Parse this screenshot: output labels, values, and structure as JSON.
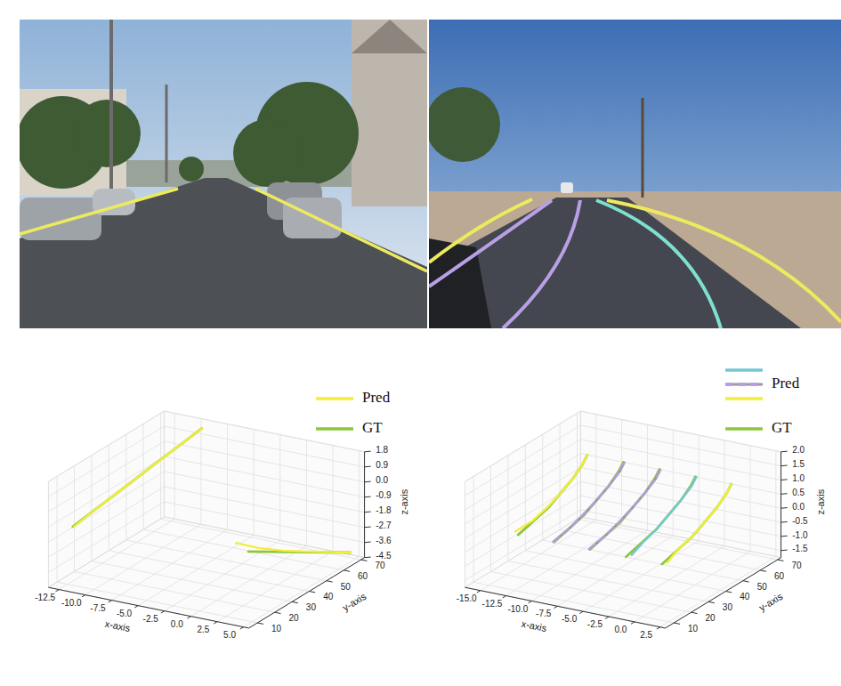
{
  "chart_data": [
    {
      "type": "line3d",
      "xlabel": "x-axis",
      "ylabel": "y-axis",
      "zlabel": "z-axis",
      "xlim": [
        -13.5,
        5.5
      ],
      "ylim": [
        5,
        72
      ],
      "zlim": [
        -4.5,
        1.8
      ],
      "xticks": [
        -12.5,
        {
          "value": -10,
          "label": "-10.0"
        },
        -7.5,
        {
          "value": -5,
          "label": "-5.0"
        },
        -2.5,
        {
          "value": 0,
          "label": "0.0"
        },
        2.5,
        {
          "value": 5,
          "label": "5.0"
        }
      ],
      "yticks": [
        10,
        20,
        30,
        40,
        50,
        60,
        70
      ],
      "zticks": [
        1.8,
        0.9,
        {
          "value": 0,
          "label": "0.0"
        },
        -0.9,
        -1.8,
        -2.7,
        -3.6,
        -4.5
      ],
      "grid": true,
      "legend": "upper right",
      "series": [
        {
          "name": "Pred",
          "color": "#f2ee3a",
          "x": [
            -11.9,
            -11.6,
            -11.2,
            -10.8,
            -10.4,
            -10.0,
            -9.6
          ],
          "y": [
            10,
            20,
            30,
            40,
            50,
            60,
            70
          ],
          "z": [
            -1.0,
            -0.6,
            -0.2,
            0.2,
            0.6,
            1.0,
            1.4
          ]
        },
        {
          "name": "Pred",
          "color": "#f2ee3a",
          "x": [
            1.5,
            2.3,
            3.0,
            3.6,
            4.1,
            4.5
          ],
          "y": [
            22,
            30,
            40,
            50,
            60,
            70
          ],
          "z": [
            -1.0,
            -1.7,
            -2.4,
            -3.0,
            -3.6,
            -4.2
          ]
        },
        {
          "name": "GT",
          "color": "#8dc63f",
          "x": [
            -12.0,
            -11.6,
            -11.2,
            -10.8,
            -10.4,
            -10.0,
            -9.6
          ],
          "y": [
            10,
            20,
            30,
            40,
            50,
            60,
            70
          ],
          "z": [
            -1.0,
            -0.6,
            -0.2,
            0.2,
            0.6,
            1.0,
            1.4
          ]
        },
        {
          "name": "GT",
          "color": "#8dc63f",
          "x": [
            3.0,
            3.3,
            3.6,
            3.9,
            4.2,
            4.5
          ],
          "y": [
            20,
            30,
            40,
            50,
            60,
            70
          ],
          "z": [
            -1.2,
            -1.8,
            -2.4,
            -3.0,
            -3.6,
            -4.2
          ]
        }
      ]
    },
    {
      "type": "line3d",
      "xlabel": "x-axis",
      "ylabel": "y-axis",
      "zlabel": "z-axis",
      "xlim": [
        -16.5,
        3
      ],
      "ylim": [
        5,
        72
      ],
      "zlim": [
        -1.75,
        2.0
      ],
      "xticks": [
        {
          "value": -15,
          "label": "-15.0"
        },
        -12.5,
        {
          "value": -10,
          "label": "-10.0"
        },
        -7.5,
        {
          "value": -5,
          "label": "-5.0"
        },
        -2.5,
        {
          "value": 0,
          "label": "0.0"
        },
        2.5
      ],
      "yticks": [
        10,
        20,
        30,
        40,
        50,
        60,
        70
      ],
      "zticks": [
        {
          "value": 2,
          "label": "2.0"
        },
        1.5,
        {
          "value": 1,
          "label": "1.0"
        },
        0.5,
        {
          "value": 0,
          "label": "0.0"
        },
        -0.5,
        {
          "value": -1,
          "label": "-1.0"
        },
        -1.5
      ],
      "grid": true,
      "legend": "upper right",
      "series": [
        {
          "name": "Pred",
          "color": "#74c7d1",
          "x": [
            -2.3,
            -2.6,
            -2.9,
            -3.4,
            -3.9,
            -4.5,
            -4.9
          ],
          "y": [
            17,
            25,
            35,
            45,
            55,
            65,
            70
          ],
          "z": [
            0.0,
            0.1,
            0.2,
            0.3,
            0.4,
            0.5,
            0.6
          ]
        },
        {
          "name": "Pred",
          "color": "#b49ce0",
          "line_style": "dashed",
          "x": [
            -9.6,
            -9.7,
            -10.0,
            -10.4,
            -10.9,
            -11.5,
            -11.9
          ],
          "y": [
            15,
            25,
            35,
            45,
            55,
            65,
            70
          ],
          "z": [
            0.0,
            0.1,
            0.2,
            0.3,
            0.4,
            0.5,
            0.6
          ]
        },
        {
          "name": "Pred",
          "color": "#b49ce0",
          "line_style": "dashed",
          "x": [
            -6.1,
            -6.2,
            -6.5,
            -6.9,
            -7.4,
            -8.0,
            -8.4
          ],
          "y": [
            15,
            25,
            35,
            45,
            55,
            65,
            70
          ],
          "z": [
            0.0,
            0.1,
            0.2,
            0.3,
            0.4,
            0.5,
            0.6
          ]
        },
        {
          "name": "Pred",
          "color": "#f2ee3a",
          "x": [
            -13.6,
            -13.3,
            -13.5,
            -13.9,
            -14.4,
            -15.1,
            -15.5
          ],
          "y": [
            17,
            25,
            35,
            45,
            55,
            65,
            70
          ],
          "z": [
            0.0,
            0.1,
            0.2,
            0.3,
            0.4,
            0.5,
            0.6
          ]
        },
        {
          "name": "Pred",
          "color": "#f2ee3a",
          "x": [
            1.2,
            0.8,
            0.6,
            0.1,
            -0.4,
            -1.1,
            -1.5
          ],
          "y": [
            17,
            25,
            35,
            45,
            55,
            65,
            70
          ],
          "z": [
            0.0,
            0.1,
            0.2,
            0.3,
            0.4,
            0.5,
            0.6
          ]
        },
        {
          "name": "GT",
          "color": "#8dc63f",
          "x": [
            -13.0,
            -13.2,
            -13.4,
            -13.9,
            -14.4,
            -15.1,
            -15.5
          ],
          "y": [
            15,
            25,
            35,
            45,
            55,
            65,
            70
          ],
          "z": [
            0.0,
            0.1,
            0.2,
            0.3,
            0.4,
            0.5,
            0.6
          ]
        },
        {
          "name": "GT",
          "color": "#8dc63f",
          "x": [
            -9.5,
            -9.7,
            -9.9,
            -10.4,
            -10.9,
            -11.6,
            -12.0
          ],
          "y": [
            15,
            25,
            35,
            45,
            55,
            65,
            70
          ],
          "z": [
            0.0,
            0.1,
            0.2,
            0.3,
            0.4,
            0.5,
            0.6
          ]
        },
        {
          "name": "GT",
          "color": "#8dc63f",
          "x": [
            -6.0,
            -6.2,
            -6.4,
            -6.9,
            -7.4,
            -8.1,
            -8.5
          ],
          "y": [
            15,
            25,
            35,
            45,
            55,
            65,
            70
          ],
          "z": [
            0.0,
            0.1,
            0.2,
            0.3,
            0.4,
            0.5,
            0.6
          ]
        },
        {
          "name": "GT",
          "color": "#8dc63f",
          "x": [
            -2.5,
            -2.7,
            -2.9,
            -3.4,
            -3.9,
            -4.6,
            -5.0
          ],
          "y": [
            15,
            25,
            35,
            45,
            55,
            65,
            70
          ],
          "z": [
            0.0,
            0.1,
            0.2,
            0.3,
            0.4,
            0.5,
            0.6
          ]
        },
        {
          "name": "GT",
          "color": "#8dc63f",
          "x": [
            1.0,
            0.8,
            0.6,
            0.1,
            -0.4,
            -1.1,
            -1.5
          ],
          "y": [
            15,
            25,
            35,
            45,
            55,
            65,
            70
          ],
          "z": [
            0.0,
            0.1,
            0.2,
            0.3,
            0.4,
            0.5,
            0.6
          ]
        }
      ]
    }
  ]
}
